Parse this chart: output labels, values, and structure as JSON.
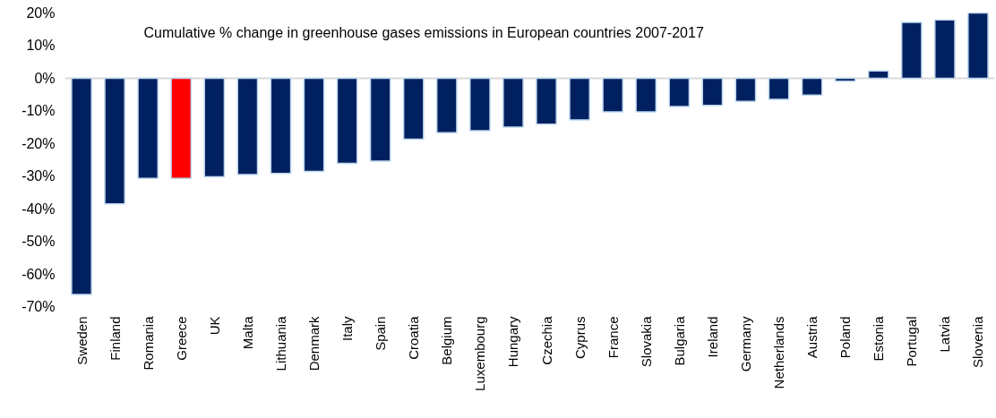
{
  "chart_data": {
    "type": "bar",
    "title": "Cumulative % change in greenhouse gases emissions in European countries 2007-2017",
    "categories": [
      "Sweden",
      "Finland",
      "Romania",
      "Greece",
      "UK",
      "Malta",
      "Lithuania",
      "Denmark",
      "Italy",
      "Spain",
      "Croatia",
      "Belgium",
      "Luxembourg",
      "Hungary",
      "Czechia",
      "Cyprus",
      "France",
      "Slovakia",
      "Bulgaria",
      "Ireland",
      "Germany",
      "Netherlands",
      "Austria",
      "Poland",
      "Estonia",
      "Portugal",
      "Latvia",
      "Slovenia"
    ],
    "values": [
      -66.3,
      -38.5,
      -30.7,
      -30.7,
      -30.2,
      -29.5,
      -29.2,
      -28.6,
      -26.1,
      -25.4,
      -18.7,
      -16.7,
      -16.1,
      -15.0,
      -14.1,
      -12.8,
      -10.3,
      -10.3,
      -8.7,
      -8.3,
      -7.1,
      -6.5,
      -5.2,
      -0.9,
      2.2,
      17.1,
      17.9,
      20
    ],
    "colors": [
      "#002060",
      "#002060",
      "#002060",
      "#ff0000",
      "#002060",
      "#002060",
      "#002060",
      "#002060",
      "#002060",
      "#002060",
      "#002060",
      "#002060",
      "#002060",
      "#002060",
      "#002060",
      "#002060",
      "#002060",
      "#002060",
      "#002060",
      "#002060",
      "#002060",
      "#002060",
      "#002060",
      "#002060",
      "#002060",
      "#002060",
      "#002060",
      "#002060"
    ],
    "ylim": [
      -70,
      20
    ],
    "yticks": [
      {
        "value": 20,
        "label": "20%"
      },
      {
        "value": 10,
        "label": "10%"
      },
      {
        "value": 0,
        "label": "0%"
      },
      {
        "value": -10,
        "label": "-10%"
      },
      {
        "value": -20,
        "label": "-20%"
      },
      {
        "value": -30,
        "label": "-30%"
      },
      {
        "value": -40,
        "label": "-40%"
      },
      {
        "value": -50,
        "label": "-50%"
      },
      {
        "value": -60,
        "label": "-60%"
      },
      {
        "value": -70,
        "label": "-70%"
      }
    ],
    "ref_lines": [
      {
        "axis": "y",
        "value": 0,
        "color": "#d9d9d9"
      }
    ],
    "grid": false
  }
}
